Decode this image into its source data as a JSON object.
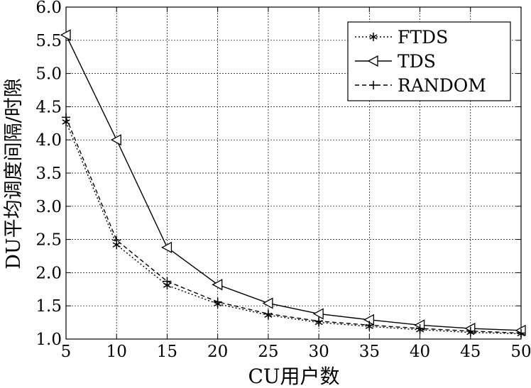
{
  "chart_data": {
    "type": "line",
    "title": "",
    "xlabel": "CU用户数",
    "ylabel": "DU平均调度间隔/时隙",
    "xlim": [
      5,
      50
    ],
    "ylim": [
      1.0,
      6.0
    ],
    "xticks": [
      5,
      10,
      15,
      20,
      25,
      30,
      35,
      40,
      45,
      50
    ],
    "yticks": [
      1.0,
      1.5,
      2.0,
      2.5,
      3.0,
      3.5,
      4.0,
      4.5,
      5.0,
      5.5,
      6.0
    ],
    "ytick_labels": [
      "1.0",
      "1.5",
      "2.0",
      "2.5",
      "3.0",
      "3.5",
      "4.0",
      "4.5",
      "5.0",
      "5.5",
      "6.0"
    ],
    "grid": true,
    "legend_position": "top-right",
    "x": [
      5,
      10,
      15,
      20,
      25,
      30,
      35,
      40,
      45,
      50
    ],
    "series": [
      {
        "name": "FTDS",
        "marker": "asterisk",
        "line": "dotted",
        "color": "#000000",
        "values": [
          4.27,
          2.42,
          1.81,
          1.53,
          1.36,
          1.25,
          1.19,
          1.14,
          1.1,
          1.08
        ]
      },
      {
        "name": "TDS",
        "marker": "triangle-left",
        "line": "solid",
        "color": "#000000",
        "values": [
          5.58,
          4.0,
          2.38,
          1.82,
          1.54,
          1.38,
          1.29,
          1.21,
          1.16,
          1.13
        ]
      },
      {
        "name": "RANDOM",
        "marker": "plus",
        "line": "dashed",
        "color": "#000000",
        "values": [
          4.34,
          2.49,
          1.87,
          1.56,
          1.38,
          1.27,
          1.21,
          1.16,
          1.12,
          1.09
        ]
      }
    ]
  }
}
